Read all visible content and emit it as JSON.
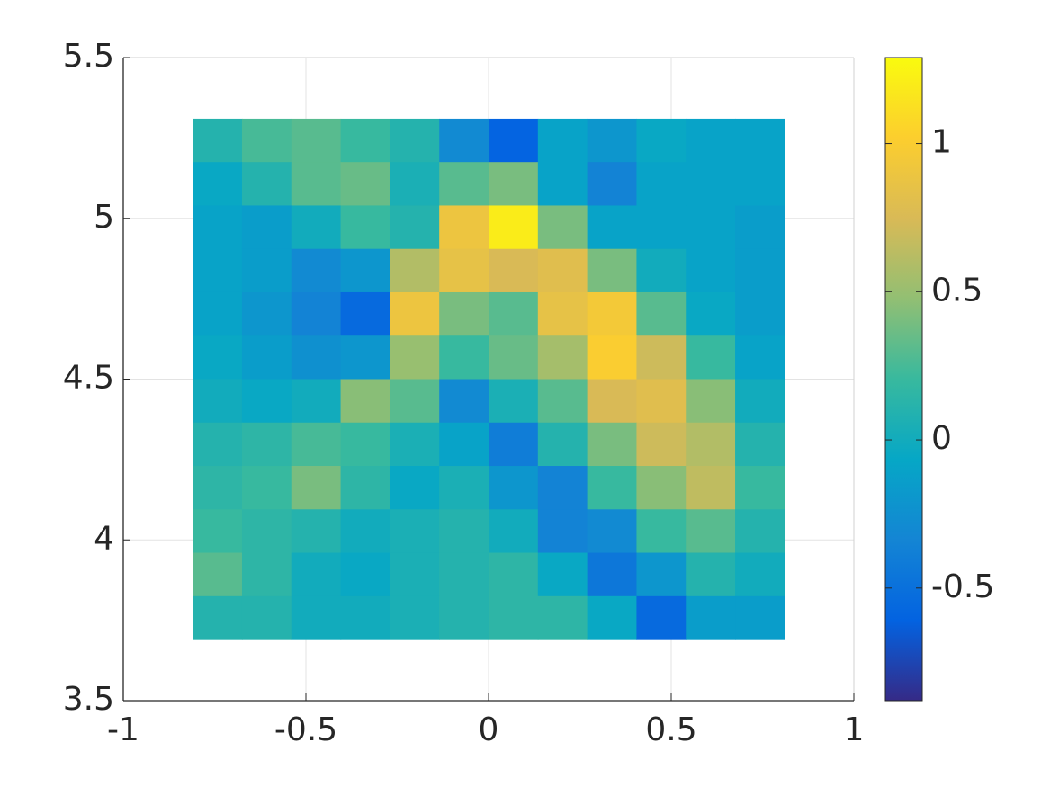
{
  "chart_data": {
    "type": "heatmap",
    "x": [
      -0.7425,
      -0.6075,
      -0.4725,
      -0.3375,
      -0.2025,
      -0.0675,
      0.0675,
      0.2025,
      0.3375,
      0.4725,
      0.6075,
      0.7425
    ],
    "y": [
      5.2425,
      5.1075,
      4.9725,
      4.8375,
      4.7025,
      4.5675,
      4.4325,
      4.2975,
      4.1625,
      4.0275,
      3.8925,
      3.7575
    ],
    "cell_size": 0.135,
    "z": [
      [
        0.1,
        0.25,
        0.3,
        0.2,
        0.1,
        -0.3,
        -0.6,
        -0.1,
        -0.2,
        -0.05,
        -0.1,
        -0.1
      ],
      [
        -0.05,
        0.1,
        0.3,
        0.35,
        0.05,
        0.3,
        0.4,
        -0.1,
        -0.35,
        -0.1,
        -0.1,
        -0.1
      ],
      [
        -0.1,
        -0.15,
        0.0,
        0.2,
        0.1,
        0.9,
        1.2,
        0.4,
        -0.1,
        -0.1,
        -0.1,
        -0.15
      ],
      [
        -0.1,
        -0.15,
        -0.3,
        -0.2,
        0.6,
        0.85,
        0.75,
        0.8,
        0.4,
        0.0,
        -0.1,
        -0.15
      ],
      [
        -0.1,
        -0.2,
        -0.35,
        -0.55,
        0.9,
        0.4,
        0.3,
        0.85,
        0.95,
        0.3,
        -0.05,
        -0.15
      ],
      [
        -0.05,
        -0.15,
        -0.25,
        -0.2,
        0.5,
        0.2,
        0.35,
        0.55,
        1.0,
        0.7,
        0.2,
        -0.1
      ],
      [
        0.0,
        -0.05,
        0.0,
        0.45,
        0.3,
        -0.3,
        0.05,
        0.3,
        0.75,
        0.8,
        0.45,
        0.0
      ],
      [
        0.1,
        0.15,
        0.25,
        0.2,
        0.05,
        -0.1,
        -0.4,
        0.1,
        0.4,
        0.7,
        0.6,
        0.1
      ],
      [
        0.15,
        0.2,
        0.4,
        0.15,
        -0.05,
        0.05,
        -0.2,
        -0.35,
        0.2,
        0.45,
        0.65,
        0.2
      ],
      [
        0.2,
        0.15,
        0.1,
        0.0,
        0.05,
        0.1,
        0.0,
        -0.35,
        -0.3,
        0.2,
        0.3,
        0.1
      ],
      [
        0.3,
        0.15,
        0.0,
        -0.05,
        0.05,
        0.1,
        0.15,
        -0.05,
        -0.45,
        -0.2,
        0.1,
        0.0
      ],
      [
        0.1,
        0.1,
        0.0,
        0.0,
        0.05,
        0.1,
        0.15,
        0.15,
        -0.05,
        -0.55,
        -0.15,
        -0.15
      ]
    ],
    "xlim": [
      -1,
      1
    ],
    "xticks": [
      -1,
      -0.5,
      0,
      0.5,
      1
    ],
    "ylim": [
      3.5,
      5.5
    ],
    "yticks": [
      3.5,
      4,
      4.5,
      5,
      5.5
    ],
    "clim": [
      -0.88,
      1.29
    ],
    "cticks": [
      -0.5,
      0,
      0.5,
      1
    ],
    "colormap": [
      "#352a87",
      "#0363e1",
      "#1485d4",
      "#06a7c6",
      "#38b99e",
      "#92bf73",
      "#d9ba56",
      "#fcce2e",
      "#f9fb0e"
    ],
    "grid": true
  }
}
